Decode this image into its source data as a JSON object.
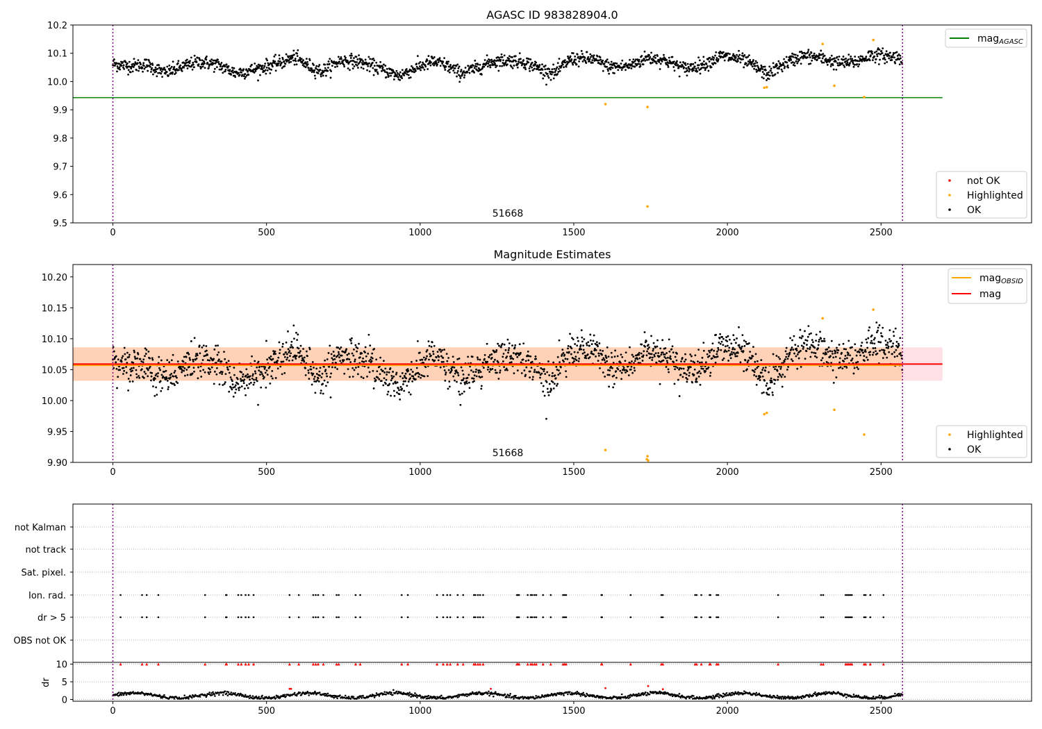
{
  "chart_data": [
    {
      "type": "scatter",
      "title": "AGASC ID 983828904.0",
      "annotation": "51668",
      "xlim": [
        -130,
        2990
      ],
      "ylim": [
        9.5,
        10.2
      ],
      "x_ticks": [
        0,
        500,
        1000,
        1500,
        2000,
        2500
      ],
      "y_ticks": [
        9.5,
        9.6,
        9.7,
        9.8,
        9.9,
        10.0,
        10.1,
        10.2
      ],
      "y_tick_labels": [
        "9.5",
        "9.6",
        "9.7",
        "9.8",
        "9.9",
        "10.0",
        "10.1",
        "10.2"
      ],
      "x_range_markers": [
        0,
        2570
      ],
      "lines": [
        {
          "name": "mag_AGASC",
          "label_main": "mag",
          "label_sub": "AGASC",
          "y": 9.943,
          "x": [
            -130,
            2700
          ],
          "color": "#008000"
        }
      ],
      "ok_series": {
        "name": "OK",
        "color": "#000000",
        "n": 2570,
        "base": 10.06,
        "segments": [
          [
            0,
            10.062
          ],
          [
            60,
            10.055
          ],
          [
            110,
            10.06
          ],
          [
            170,
            10.03
          ],
          [
            220,
            10.05
          ],
          [
            280,
            10.07
          ],
          [
            340,
            10.06
          ],
          [
            400,
            10.03
          ],
          [
            470,
            10.045
          ],
          [
            540,
            10.065
          ],
          [
            590,
            10.085
          ],
          [
            630,
            10.06
          ],
          [
            680,
            10.035
          ],
          [
            740,
            10.075
          ],
          [
            800,
            10.07
          ],
          [
            860,
            10.05
          ],
          [
            930,
            10.02
          ],
          [
            990,
            10.05
          ],
          [
            1040,
            10.07
          ],
          [
            1080,
            10.06
          ],
          [
            1130,
            10.03
          ],
          [
            1180,
            10.045
          ],
          [
            1230,
            10.07
          ],
          [
            1290,
            10.075
          ],
          [
            1340,
            10.07
          ],
          [
            1400,
            10.04
          ],
          [
            1440,
            10.03
          ],
          [
            1490,
            10.08
          ],
          [
            1560,
            10.08
          ],
          [
            1620,
            10.05
          ],
          [
            1680,
            10.055
          ],
          [
            1740,
            10.085
          ],
          [
            1800,
            10.075
          ],
          [
            1860,
            10.045
          ],
          [
            1920,
            10.06
          ],
          [
            1980,
            10.09
          ],
          [
            2040,
            10.08
          ],
          [
            2080,
            10.06
          ],
          [
            2130,
            10.025
          ],
          [
            2180,
            10.06
          ],
          [
            2240,
            10.09
          ],
          [
            2300,
            10.085
          ],
          [
            2360,
            10.065
          ],
          [
            2420,
            10.07
          ],
          [
            2470,
            10.095
          ],
          [
            2570,
            10.085
          ]
        ],
        "noise": 0.018
      },
      "highlighted": {
        "name": "Highlighted",
        "color": "#ffa500",
        "points": [
          [
            1603,
            9.92
          ],
          [
            1740,
            9.91
          ],
          [
            1740,
            9.558
          ],
          [
            2120,
            9.978
          ],
          [
            2128,
            9.98
          ],
          [
            2310,
            10.133
          ],
          [
            2348,
            9.985
          ],
          [
            2445,
            9.945
          ],
          [
            2475,
            10.147
          ]
        ]
      },
      "not_ok": {
        "name": "not OK",
        "color": "#ff0000",
        "points": []
      },
      "legend_upper": [
        "mag_AGASC"
      ],
      "legend_lower": [
        "not OK",
        "Highlighted",
        "OK"
      ]
    },
    {
      "type": "scatter",
      "title": "Magnitude Estimates",
      "annotation": "51668",
      "xlim": [
        -130,
        2990
      ],
      "ylim": [
        9.9,
        10.22
      ],
      "x_ticks": [
        0,
        500,
        1000,
        1500,
        2000,
        2500
      ],
      "y_ticks": [
        9.9,
        9.95,
        10.0,
        10.05,
        10.1,
        10.15,
        10.2
      ],
      "y_tick_labels": [
        "9.90",
        "9.95",
        "10.00",
        "10.05",
        "10.10",
        "10.15",
        "10.20"
      ],
      "x_range_markers": [
        0,
        2570
      ],
      "band": {
        "y_low": 10.032,
        "y_high": 10.086,
        "x": [
          -130,
          2700
        ],
        "color_in": "#ffd2b8",
        "color_out": "#ffe0e6"
      },
      "lines": [
        {
          "name": "mag_OBSID",
          "label_main": "mag",
          "label_sub": "OBSID",
          "y": 10.057,
          "x": [
            -130,
            2570
          ],
          "color": "#ffa500"
        },
        {
          "name": "mag",
          "label_main": "mag",
          "label_sub": "",
          "y": 10.059,
          "x": [
            -130,
            2700
          ],
          "color": "#ff0000"
        }
      ],
      "ok_series": {
        "name": "OK",
        "color": "#000000",
        "n": 2570,
        "noise": 0.02
      },
      "highlighted": {
        "name": "Highlighted",
        "color": "#ffa500",
        "points": [
          [
            1603,
            9.92
          ],
          [
            1740,
            9.91
          ],
          [
            1738,
            9.905
          ],
          [
            1742,
            9.903
          ],
          [
            2120,
            9.978
          ],
          [
            2128,
            9.98
          ],
          [
            2310,
            10.133
          ],
          [
            2348,
            9.985
          ],
          [
            2445,
            9.945
          ],
          [
            2475,
            10.147
          ]
        ]
      },
      "legend_upper": [
        "mag_OBSID",
        "mag"
      ],
      "legend_lower": [
        "Highlighted",
        "OK"
      ]
    },
    {
      "type": "scatter",
      "title": "",
      "xlim": [
        -130,
        2990
      ],
      "x_ticks": [
        0,
        500,
        1000,
        1500,
        2000,
        2500
      ],
      "x_range_markers": [
        0,
        2570
      ],
      "flag_rows": [
        "not Kalman",
        "not track",
        "Sat. pixel.",
        "Ion. rad.",
        "dr > 5",
        "OBS not OK"
      ],
      "flag_events_x": [
        25,
        95,
        110,
        148,
        300,
        368,
        370,
        408,
        418,
        432,
        442,
        458,
        575,
        605,
        652,
        660,
        668,
        685,
        728,
        735,
        790,
        805,
        940,
        960,
        1055,
        1075,
        1088,
        1098,
        1122,
        1140,
        1175,
        1180,
        1188,
        1195,
        1205,
        1315,
        1318,
        1322,
        1350,
        1360,
        1365,
        1372,
        1378,
        1400,
        1425,
        1465,
        1470,
        1475,
        1590,
        1592,
        1685,
        1785,
        1790,
        1895,
        1900,
        1915,
        1942,
        1945,
        1965,
        1970,
        2165,
        2305,
        2312,
        2385,
        2390,
        2395,
        2400,
        2405,
        2445,
        2450,
        2465,
        2508
      ],
      "dr_panel": {
        "ylabel": "dr",
        "ylim": [
          -0.5,
          10.5
        ],
        "y_ticks": [
          0,
          5,
          10
        ],
        "y_tick_labels": [
          "0",
          "5",
          "10"
        ],
        "flag_value": 10,
        "red_marker": "^"
      }
    }
  ]
}
